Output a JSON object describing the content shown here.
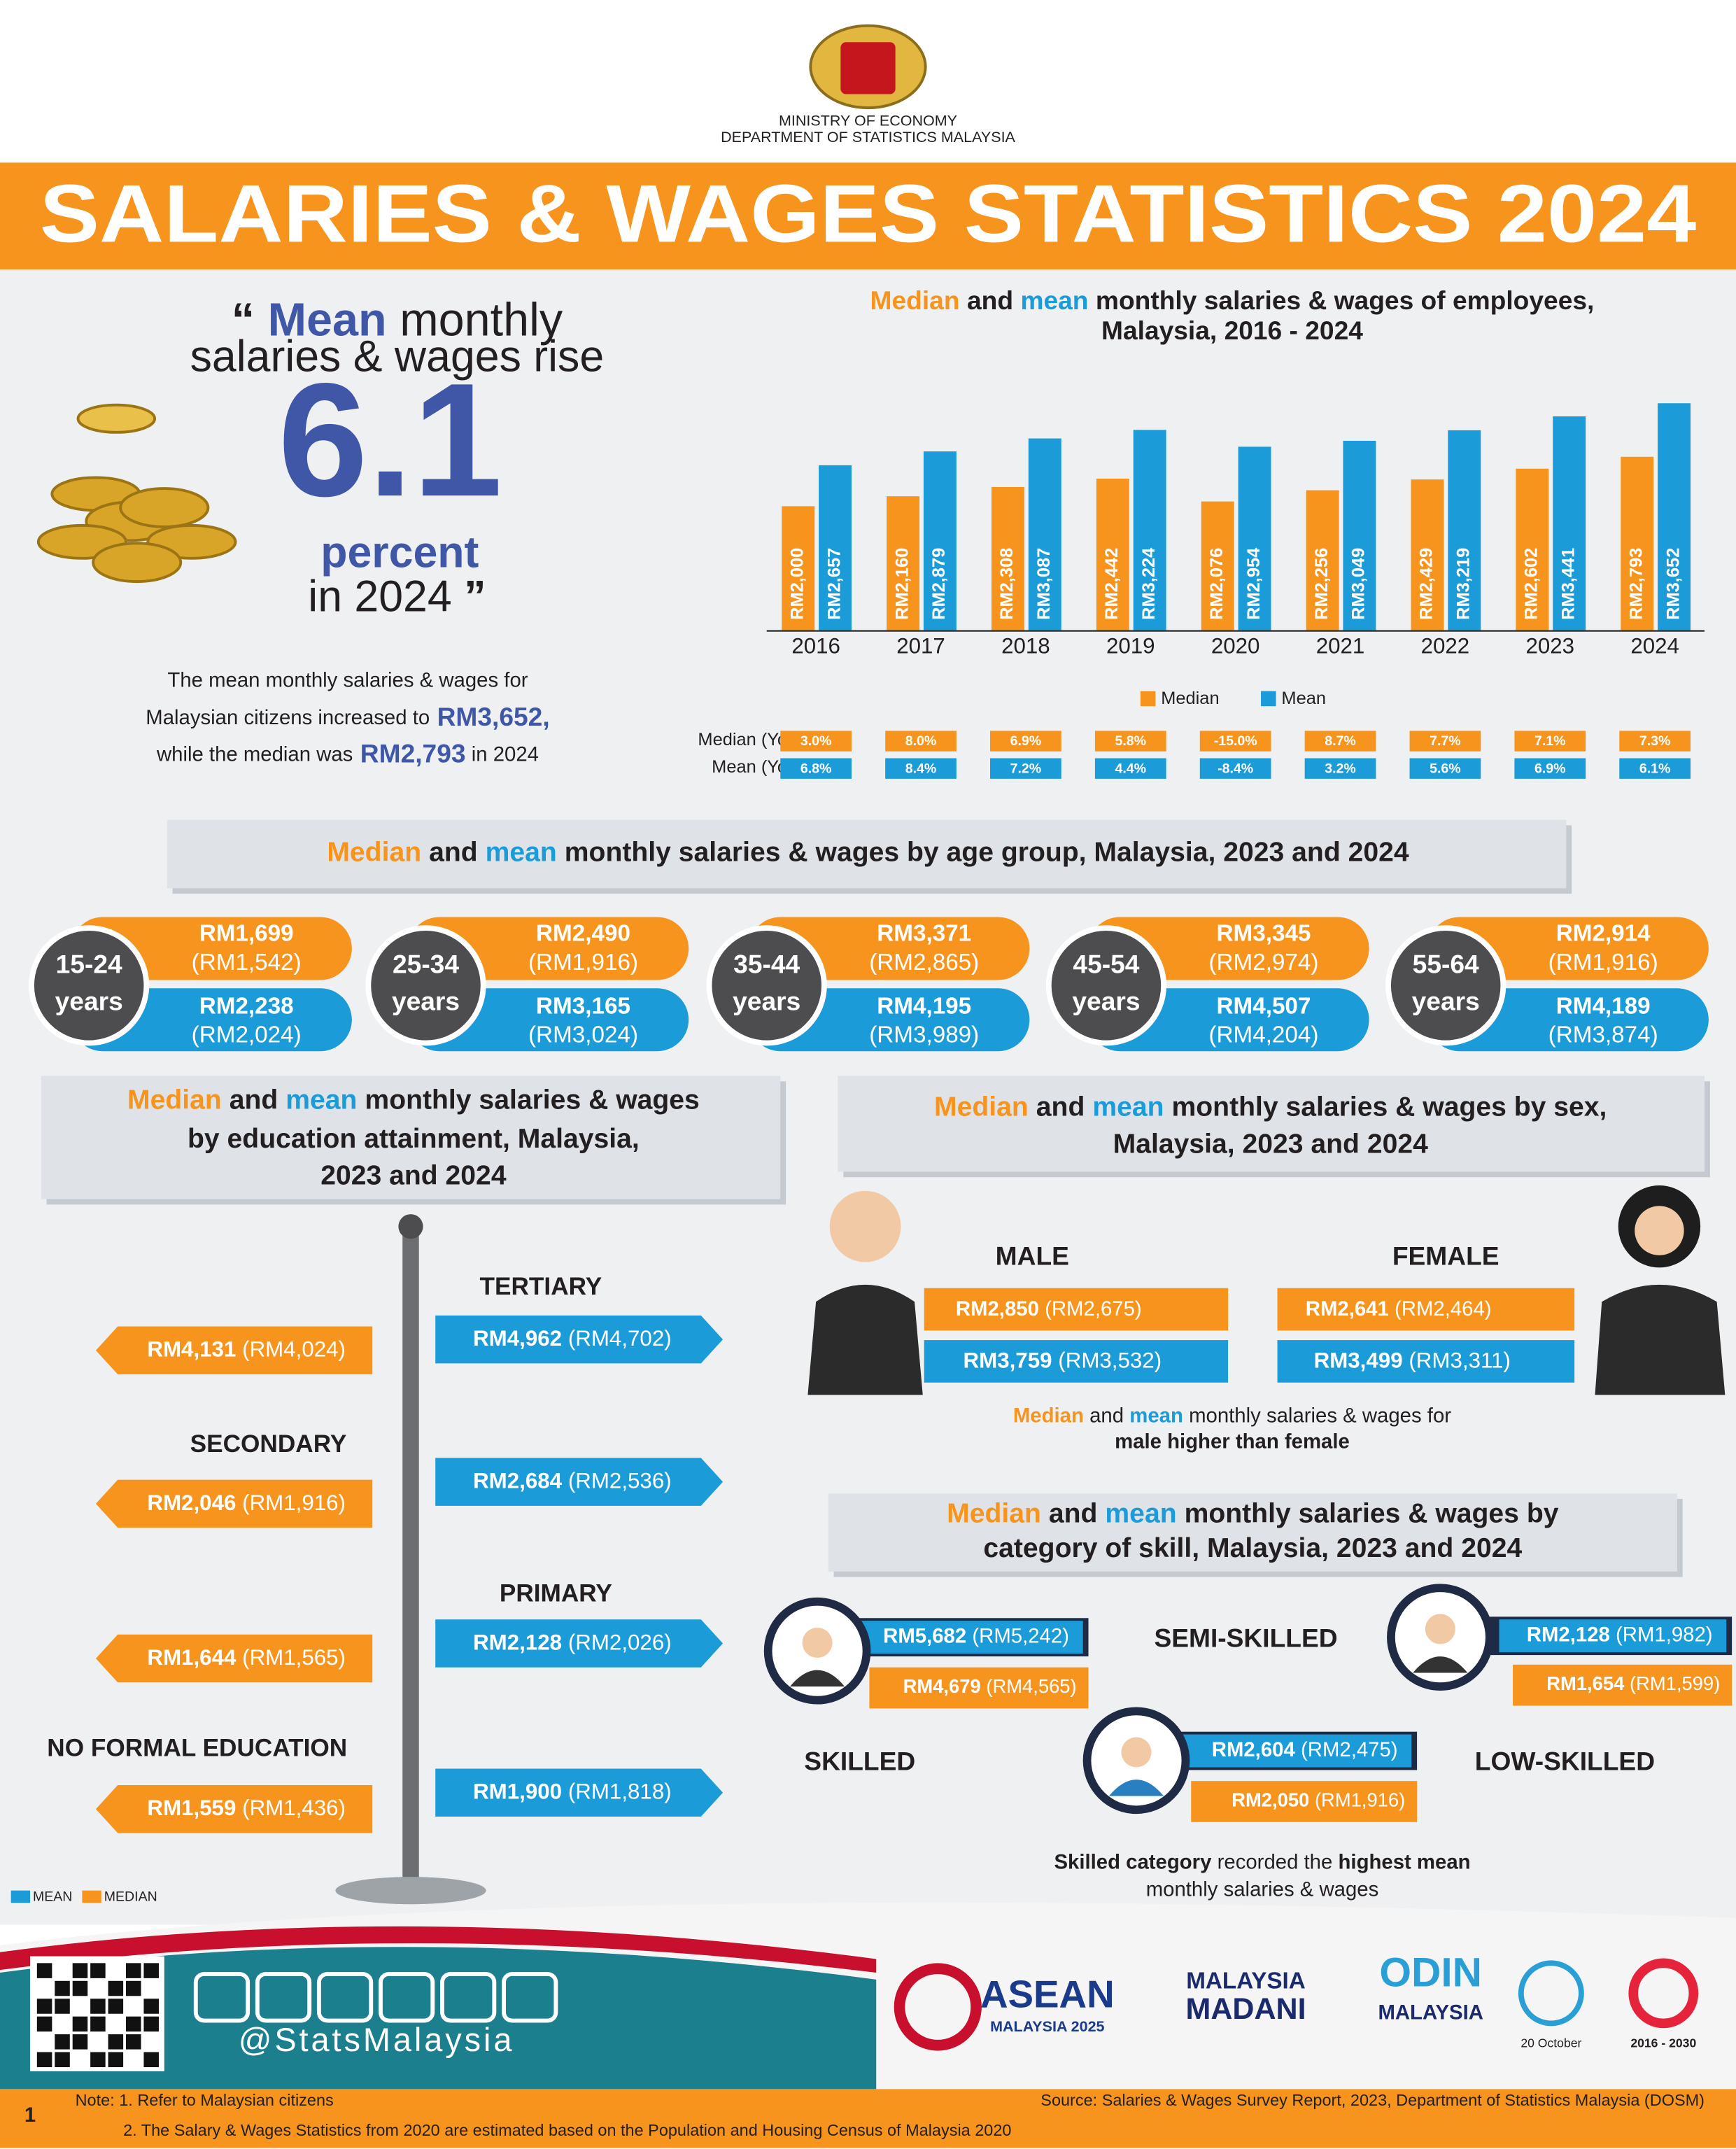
{
  "header": {
    "ministry": "MINISTRY OF ECONOMY",
    "department": "DEPARTMENT OF STATISTICS MALAYSIA",
    "title": "SALARIES & WAGES STATISTICS 2024"
  },
  "headline": {
    "open_quote": "“",
    "mean": "Mean",
    "monthly": "monthly",
    "line2": "salaries & wages rise",
    "figure": "6.1",
    "unit": "percent",
    "year": "in 2024",
    "close_quote": "”"
  },
  "summary": {
    "line1": "The mean monthly salaries & wages for",
    "line2": "Malaysian citizens increased to",
    "mean_value": "RM3,652,",
    "line3": "while the median was",
    "median_value": "RM2,793",
    "line3_end": "in 2024"
  },
  "chart_data": {
    "type": "bar",
    "title": {
      "median": "Median",
      "and": "and",
      "mean": "mean",
      "rest": "monthly salaries & wages of employees,",
      "line2": "Malaysia, 2016 - 2024"
    },
    "categories": [
      "2016",
      "2017",
      "2018",
      "2019",
      "2020",
      "2021",
      "2022",
      "2023",
      "2024"
    ],
    "series": [
      {
        "name": "Median",
        "color": "#f7941d",
        "values": [
          2000,
          2160,
          2308,
          2442,
          2076,
          2256,
          2429,
          2602,
          2793
        ],
        "value_labels": [
          "RM2,000",
          "RM2,160",
          "RM2,308",
          "RM2,442",
          "RM2,076",
          "RM2,256",
          "RM2,429",
          "RM2,602",
          "RM2,793"
        ]
      },
      {
        "name": "Mean",
        "color": "#1b9bd7",
        "values": [
          2657,
          2879,
          3087,
          3224,
          2954,
          3049,
          3219,
          3441,
          3652
        ],
        "value_labels": [
          "RM2,657",
          "RM2,879",
          "RM3,087",
          "RM3,224",
          "RM2,954",
          "RM3,049",
          "RM3,219",
          "RM3,441",
          "RM3,652"
        ]
      }
    ],
    "ylim": [
      0,
      3800
    ]
  },
  "yoy": {
    "median_label": "Median (YoY)",
    "mean_label": "Mean (YoY)",
    "median": [
      "3.0%",
      "8.0%",
      "6.9%",
      "5.8%",
      "-15.0%",
      "8.7%",
      "7.7%",
      "7.1%",
      "7.3%"
    ],
    "mean": [
      "6.8%",
      "8.4%",
      "7.2%",
      "4.4%",
      "-8.4%",
      "3.2%",
      "5.6%",
      "6.9%",
      "6.1%"
    ]
  },
  "age": {
    "title": {
      "median": "Median",
      "and": "and",
      "mean": "mean",
      "rest": "monthly salaries & wages by age group, Malaysia, 2023 and 2024"
    },
    "groups": [
      {
        "label": "15-24",
        "unit": "years",
        "median": "RM1,699",
        "median_prev": "(RM1,542)",
        "mean": "RM2,238",
        "mean_prev": "(RM2,024)"
      },
      {
        "label": "25-34",
        "unit": "years",
        "median": "RM2,490",
        "median_prev": "(RM1,916)",
        "mean": "RM3,165",
        "mean_prev": "(RM3,024)"
      },
      {
        "label": "35-44",
        "unit": "years",
        "median": "RM3,371",
        "median_prev": "(RM2,865)",
        "mean": "RM4,195",
        "mean_prev": "(RM3,989)"
      },
      {
        "label": "45-54",
        "unit": "years",
        "median": "RM3,345",
        "median_prev": "(RM2,974)",
        "mean": "RM4,507",
        "mean_prev": "(RM4,204)"
      },
      {
        "label": "55-64",
        "unit": "years",
        "median": "RM2,914",
        "median_prev": "(RM1,916)",
        "mean": "RM4,189",
        "mean_prev": "(RM3,874)"
      }
    ]
  },
  "education": {
    "title": {
      "median": "Median",
      "and": "and",
      "mean": "mean",
      "rest": "monthly salaries & wages",
      "line2": "by education attainment, Malaysia,",
      "line3": "2023 and 2024"
    },
    "levels": [
      {
        "label": "TERTIARY",
        "mean": "RM4,962",
        "mean_prev": "(RM4,702)",
        "median": "RM4,131",
        "median_prev": "(RM4,024)"
      },
      {
        "label": "SECONDARY",
        "mean": "RM2,684",
        "mean_prev": "(RM2,536)",
        "median": "RM2,046",
        "median_prev": "(RM1,916)"
      },
      {
        "label": "PRIMARY",
        "mean": "RM2,128",
        "mean_prev": "(RM2,026)",
        "median": "RM1,644",
        "median_prev": "(RM1,565)"
      },
      {
        "label": "NO FORMAL EDUCATION",
        "mean": "RM1,900",
        "mean_prev": "(RM1,818)",
        "median": "RM1,559",
        "median_prev": "(RM1,436)"
      }
    ],
    "legend": {
      "mean": "MEAN",
      "median": "MEDIAN"
    }
  },
  "sex": {
    "title": {
      "median": "Median",
      "and": "and",
      "mean": "mean",
      "rest": "monthly salaries & wages by sex,",
      "line2": "Malaysia, 2023 and 2024"
    },
    "groups": [
      {
        "label": "MALE",
        "median": "RM2,850",
        "median_prev": "(RM2,675)",
        "mean": "RM3,759",
        "mean_prev": "(RM3,532)"
      },
      {
        "label": "FEMALE",
        "median": "RM2,641",
        "median_prev": "(RM2,464)",
        "mean": "RM3,499",
        "mean_prev": "(RM3,311)"
      }
    ],
    "note": {
      "median": "Median",
      "and": "and",
      "mean": "mean",
      "rest": "monthly salaries & wages for",
      "line2": "male higher than female"
    }
  },
  "skill": {
    "title": {
      "median": "Median",
      "and": "and",
      "mean": "mean",
      "rest": "monthly salaries & wages by",
      "line2": "category of skill, Malaysia, 2023 and 2024"
    },
    "groups": [
      {
        "label": "SKILLED",
        "mean": "RM5,682",
        "mean_prev": "(RM5,242)",
        "median": "RM4,679",
        "median_prev": "(RM4,565)"
      },
      {
        "label": "SEMI-SKILLED",
        "mean": "RM2,604",
        "mean_prev": "(RM2,475)",
        "median": "RM2,050",
        "median_prev": "(RM1,916)"
      },
      {
        "label": "LOW-SKILLED",
        "mean": "RM2,128",
        "mean_prev": "(RM1,982)",
        "median": "RM1,654",
        "median_prev": "(RM1,599)"
      }
    ],
    "note": {
      "bold1": "Skilled category",
      "mid": "recorded the",
      "bold2": "highest mean",
      "line2": "monthly salaries & wages"
    }
  },
  "footer": {
    "handle": "@StatsMalaysia",
    "logos": {
      "asean": "ASEAN",
      "asean_sub": "MALAYSIA 2025",
      "madani1": "MALAYSIA",
      "madani2": "MADANI",
      "odin": "ODIN",
      "odin_sub": "MALAYSIA",
      "date": "20 October",
      "sdg_years": "2016 - 2030"
    },
    "page": "1",
    "note1": "Note: 1. Refer to Malaysian citizens",
    "note2": "2. The Salary & Wages Statistics from 2020 are estimated based on the Population and Housing Census of Malaysia 2020",
    "source": "Source: Salaries & Wages Survey Report, 2023, Department of Statistics Malaysia (DOSM)"
  }
}
